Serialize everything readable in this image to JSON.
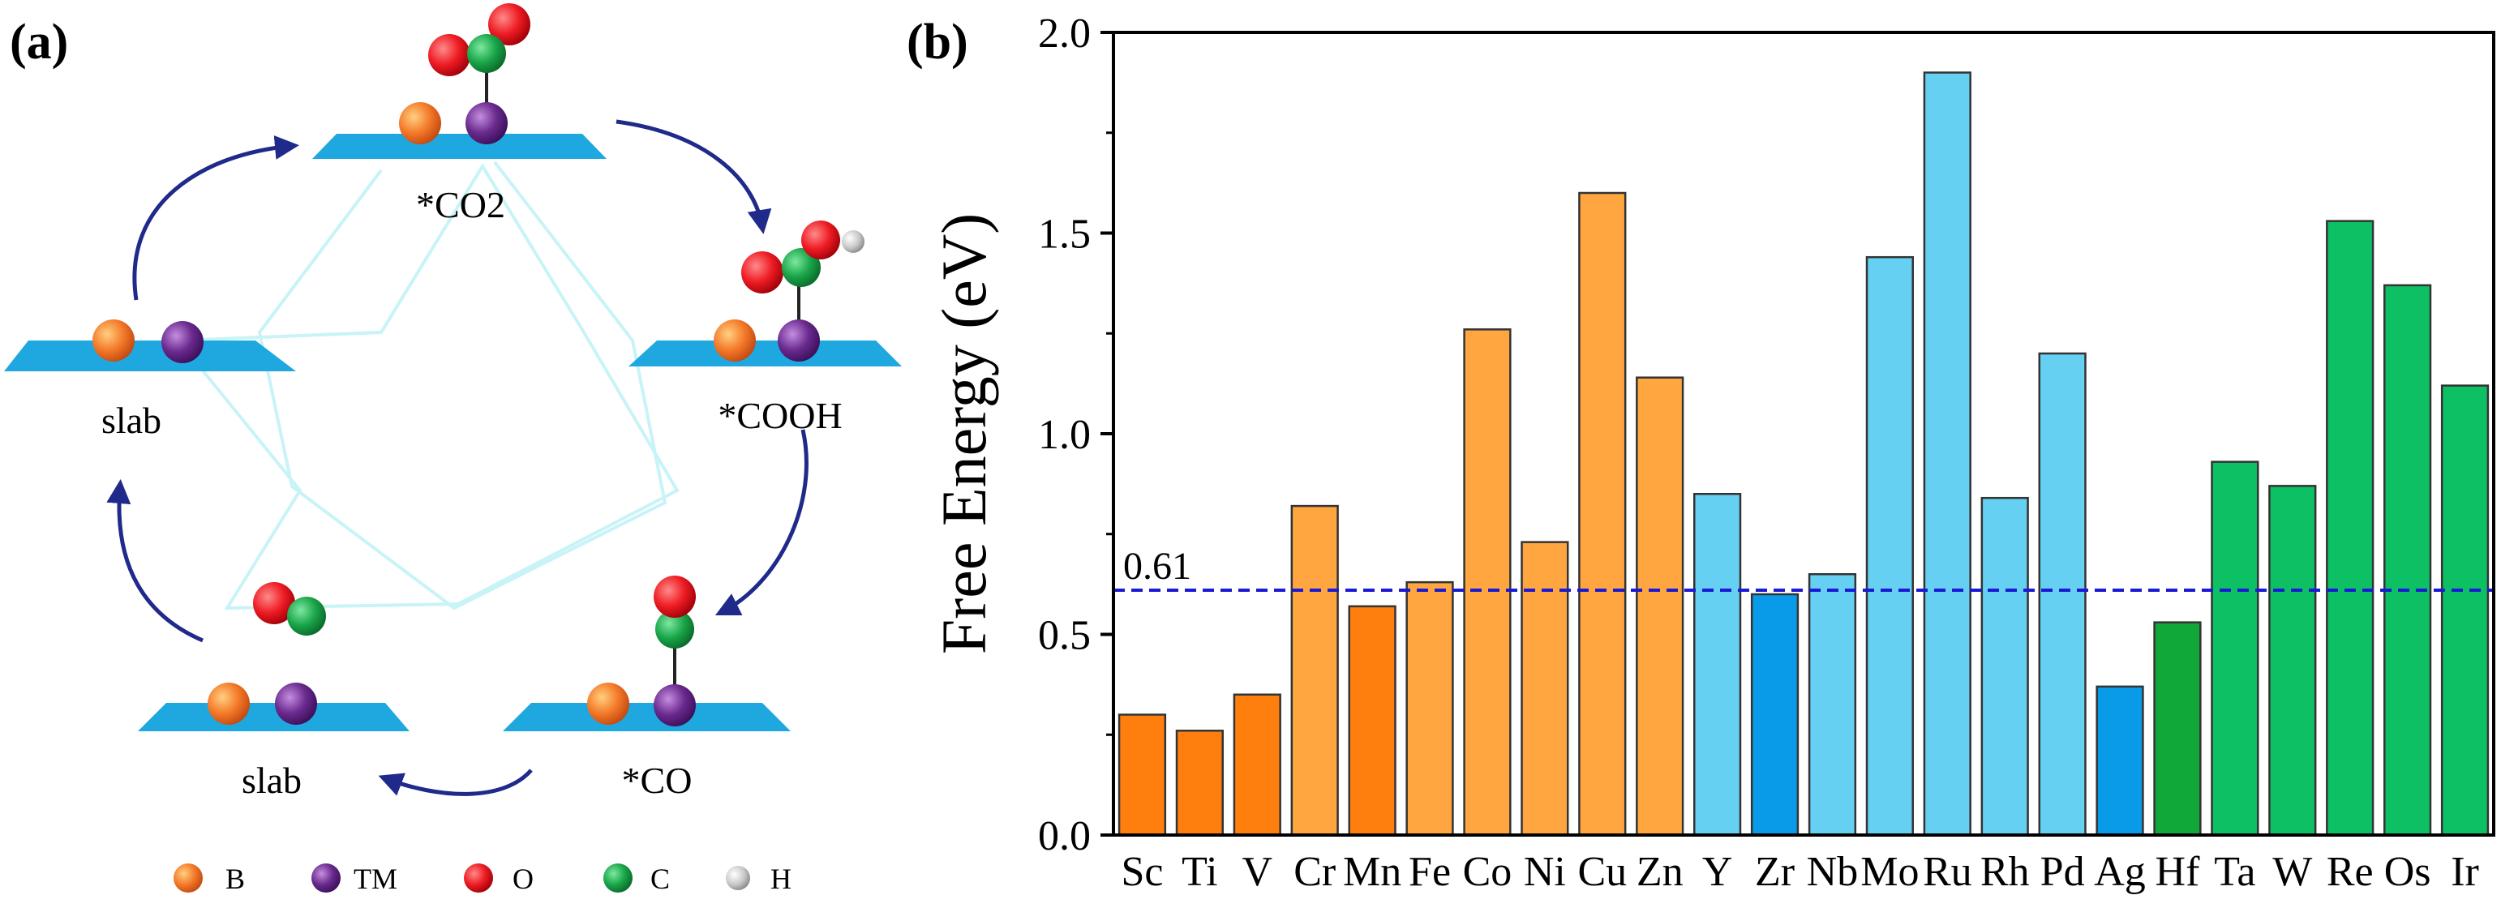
{
  "panel_a": {
    "label": "(a)",
    "states": {
      "co2": "*CO2",
      "cooh": "*COOH",
      "co": "*CO",
      "slab_left": "slab",
      "slab_bottom": "slab"
    },
    "legend": [
      {
        "symbol": "B",
        "color": "#f47a2a"
      },
      {
        "symbol": "TM",
        "color": "#6a2a8e"
      },
      {
        "symbol": "O",
        "color": "#ee1c24"
      },
      {
        "symbol": "C",
        "color": "#1aa64a"
      },
      {
        "symbol": "H",
        "color": "#b4b4b4"
      }
    ],
    "colors": {
      "surface": "#1fa8e0",
      "arrow": "#1f2a8a",
      "star": "#c8f3f7"
    }
  },
  "panel_b": {
    "label": "(b)"
  },
  "chart_data": {
    "type": "bar",
    "ylabel": "Free Energy (eV)",
    "xlabel": "",
    "ylim": [
      0,
      2.0
    ],
    "yticks": [
      0.0,
      0.5,
      1.0,
      1.5,
      2.0
    ],
    "ytick_labels": [
      "0.0",
      "0.5",
      "1.0",
      "1.5",
      "2.0"
    ],
    "grid": false,
    "categories": [
      "Sc",
      "Ti",
      "V",
      "Cr",
      "Mn",
      "Fe",
      "Co",
      "Ni",
      "Cu",
      "Zn",
      "Y",
      "Zr",
      "Nb",
      "Mo",
      "Ru",
      "Rh",
      "Pd",
      "Ag",
      "Hf",
      "Ta",
      "W",
      "Re",
      "Os",
      "Ir"
    ],
    "values": [
      0.3,
      0.26,
      0.35,
      0.82,
      0.57,
      0.63,
      1.26,
      0.73,
      1.6,
      1.14,
      0.85,
      0.6,
      0.65,
      1.44,
      1.9,
      0.84,
      1.2,
      0.37,
      0.53,
      0.93,
      0.87,
      1.53,
      1.37,
      1.12
    ],
    "colors": [
      "#ff7f0e",
      "#ff7f0e",
      "#ff7f0e",
      "#ffa640",
      "#ff7f0e",
      "#ffa640",
      "#ffa640",
      "#ffa640",
      "#ffa640",
      "#ffa640",
      "#66d0f2",
      "#0a9be8",
      "#66d0f2",
      "#66d0f2",
      "#66d0f2",
      "#66d0f2",
      "#66d0f2",
      "#0a9be8",
      "#10a838",
      "#0dc063",
      "#0dc063",
      "#0dc063",
      "#0dc063",
      "#0dc063"
    ],
    "reference_line": {
      "value": 0.61,
      "label": "0.61",
      "color": "#1a1ad6",
      "style": "dashed"
    }
  }
}
